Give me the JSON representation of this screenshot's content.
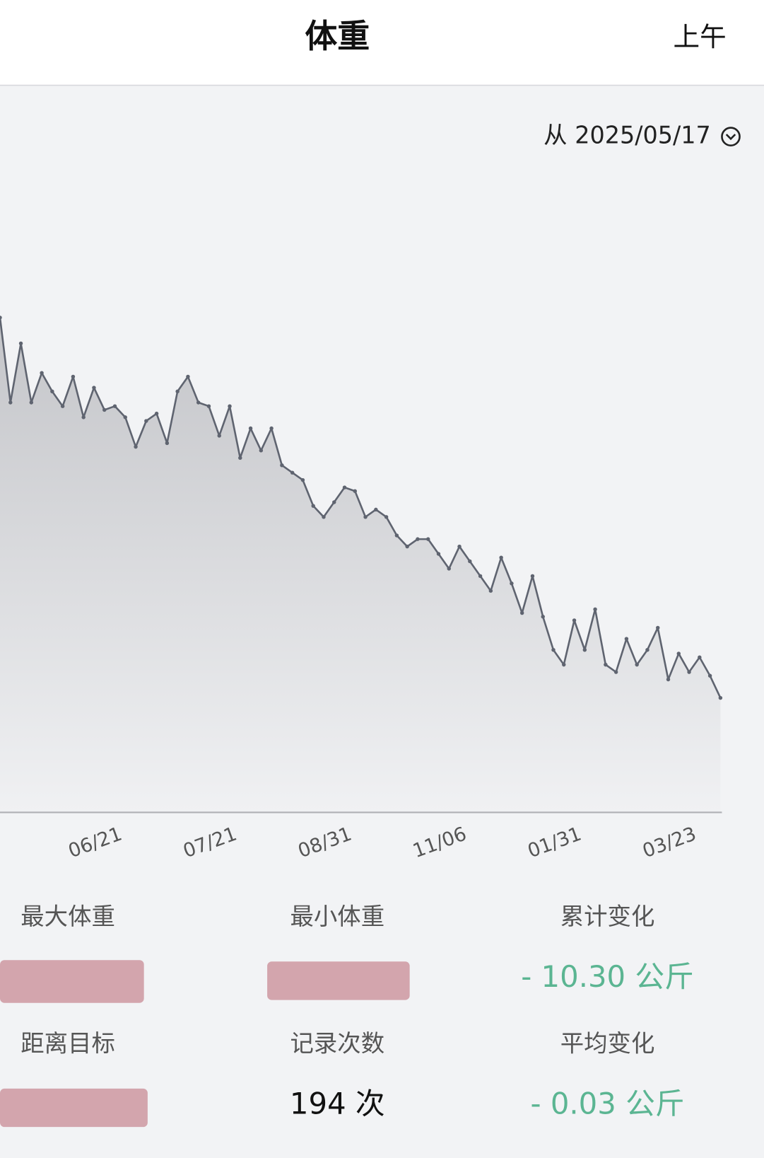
{
  "header": {
    "title": "体重",
    "action": "上午"
  },
  "range": {
    "label": "从 2025/05/17"
  },
  "chart_data": {
    "type": "line",
    "color": "#5f6470",
    "values": [
      0,
      -2.3,
      -0.7,
      -2.3,
      -1.5,
      -2.0,
      -2.4,
      -1.6,
      -2.7,
      -1.9,
      -2.5,
      -2.4,
      -2.7,
      -3.5,
      -2.8,
      -2.6,
      -3.4,
      -2.0,
      -1.6,
      -2.3,
      -2.4,
      -3.2,
      -2.4,
      -3.8,
      -3.0,
      -3.6,
      -3.0,
      -4.0,
      -4.2,
      -4.4,
      -5.1,
      -5.4,
      -5.0,
      -4.6,
      -4.7,
      -5.4,
      -5.2,
      -5.4,
      -5.9,
      -6.2,
      -6.0,
      -6.0,
      -6.4,
      -6.8,
      -6.2,
      -6.6,
      -7.0,
      -7.4,
      -6.5,
      -7.2,
      -8.0,
      -7.0,
      -8.1,
      -9.0,
      -9.4,
      -8.2,
      -9.0,
      -7.9,
      -9.4,
      -9.6,
      -8.7,
      -9.4,
      -9.0,
      -8.4,
      -9.8,
      -9.1,
      -9.6,
      -9.2,
      -9.7,
      -10.3
    ],
    "xlim": [
      0,
      69
    ],
    "ylim": [
      -13.4,
      6.0
    ],
    "xticks": [
      {
        "value": 9,
        "label": "06/21"
      },
      {
        "value": 20,
        "label": "07/21"
      },
      {
        "value": 31,
        "label": "08/31"
      },
      {
        "value": 42,
        "label": "11/06"
      },
      {
        "value": 53,
        "label": "01/31"
      },
      {
        "value": 64,
        "label": "03/23"
      }
    ]
  },
  "stats": [
    {
      "label": "最大体重"
    },
    {
      "label": "最小体重"
    },
    {
      "label": "累计变化",
      "value": "- 10.30 公斤"
    },
    {
      "label": "距离目标"
    },
    {
      "label": "记录次数",
      "value": "194 次"
    },
    {
      "label": "平均变化",
      "value": "- 0.03 公斤"
    }
  ]
}
